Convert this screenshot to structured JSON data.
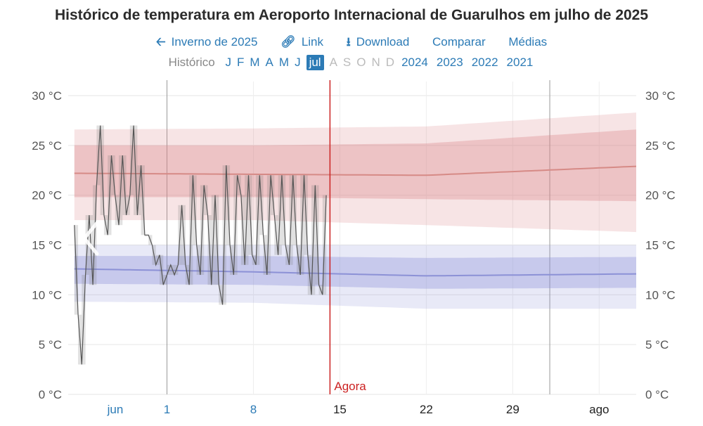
{
  "title": "Histórico de temperatura em Aeroporto Internacional de Guarulhos em julho de 2025",
  "nav": {
    "season": "Inverno de 2025",
    "link": "Link",
    "download": "Download",
    "compare": "Comparar",
    "averages": "Médias"
  },
  "months": {
    "label": "Histórico",
    "items": [
      {
        "l": "J",
        "state": "on"
      },
      {
        "l": "F",
        "state": "on"
      },
      {
        "l": "M",
        "state": "on"
      },
      {
        "l": "A",
        "state": "on"
      },
      {
        "l": "M",
        "state": "on"
      },
      {
        "l": "J",
        "state": "on"
      },
      {
        "l": "jul",
        "state": "sel"
      },
      {
        "l": "A",
        "state": "off"
      },
      {
        "l": "S",
        "state": "off"
      },
      {
        "l": "O",
        "state": "off"
      },
      {
        "l": "N",
        "state": "off"
      },
      {
        "l": "D",
        "state": "off"
      }
    ],
    "years": [
      "2024",
      "2023",
      "2022",
      "2021"
    ]
  },
  "icons": {
    "season": "arrow-left-icon",
    "link": "link-icon",
    "download": "download-icon",
    "prev": "chevron-left-icon"
  },
  "colors": {
    "accent": "#2c7bb6",
    "now": "#cc2222",
    "warm": "#d9868a",
    "cool": "#8a8fd8",
    "obs": "#555555"
  },
  "chart_data": {
    "type": "line",
    "y_ticks": [
      "0 °C",
      "5 °C",
      "10 °C",
      "15 °C",
      "20 °C",
      "25 °C",
      "30 °C"
    ],
    "ylim": [
      0,
      30
    ],
    "x_ticks": [
      {
        "day": -10,
        "label": "jun",
        "color": "#2c7bb6"
      },
      {
        "day": 1,
        "label": "1",
        "color": "#2c7bb6"
      },
      {
        "day": 8,
        "label": "8",
        "color": "#2c7bb6"
      },
      {
        "day": 15,
        "label": "15",
        "color": "#222"
      },
      {
        "day": 22,
        "label": "22",
        "color": "#222"
      },
      {
        "day": 29,
        "label": "29",
        "color": "#222"
      },
      {
        "day": 36,
        "label": "ago",
        "color": "#222"
      }
    ],
    "x_range": [
      -7,
      39
    ],
    "month_lines": [
      1,
      32
    ],
    "now": {
      "day": 14.2,
      "label": "Agora"
    },
    "high_band": {
      "x": [
        -6.5,
        8,
        22,
        39
      ],
      "p10": [
        17.5,
        17.5,
        17.0,
        16.3
      ],
      "p25": [
        19.8,
        19.8,
        19.6,
        19.4
      ],
      "mean": [
        22.2,
        22.1,
        22.0,
        22.9
      ],
      "p75": [
        25.0,
        25.0,
        25.2,
        26.6
      ],
      "p90": [
        26.6,
        26.7,
        26.9,
        28.3
      ]
    },
    "low_band": {
      "x": [
        -6.5,
        8,
        22,
        39
      ],
      "p10": [
        9.3,
        9.2,
        8.6,
        8.6
      ],
      "p25": [
        11.1,
        11.0,
        10.6,
        10.7
      ],
      "mean": [
        12.6,
        12.3,
        11.9,
        12.1
      ],
      "p75": [
        13.9,
        13.9,
        13.7,
        13.8
      ],
      "p90": [
        15.0,
        15.0,
        15.0,
        15.0
      ]
    },
    "observed": {
      "x": [
        -6.5,
        -6.2,
        -5.9,
        -5.6,
        -5.3,
        -5,
        -4.7,
        -4.4,
        -4.1,
        -3.8,
        -3.5,
        -3.2,
        -2.9,
        -2.6,
        -2.3,
        -2,
        -1.7,
        -1.4,
        -1.1,
        -0.8,
        -0.5,
        -0.2,
        0.1,
        0.4,
        0.7,
        1,
        1.3,
        1.6,
        1.9,
        2.2,
        2.5,
        2.8,
        3.1,
        3.4,
        3.7,
        4,
        4.3,
        4.6,
        4.9,
        5.2,
        5.5,
        5.8,
        6.1,
        6.4,
        6.7,
        7,
        7.3,
        7.6,
        7.9,
        8.2,
        8.5,
        8.8,
        9.1,
        9.4,
        9.7,
        10,
        10.3,
        10.6,
        10.9,
        11.2,
        11.5,
        11.8,
        12.1,
        12.4,
        12.7,
        13,
        13.3,
        13.6,
        13.9
      ],
      "y": [
        17,
        8,
        3,
        12,
        18,
        11,
        21,
        27,
        18,
        16,
        24,
        20,
        17,
        24,
        18,
        20,
        27,
        18,
        23,
        16,
        16,
        15,
        13,
        14,
        11,
        12,
        13,
        12,
        13,
        19,
        13,
        11,
        22,
        15,
        12,
        21,
        18,
        11,
        20,
        11,
        9,
        23,
        15,
        12,
        22,
        20,
        13,
        22,
        14,
        13,
        22,
        16,
        12,
        22,
        18,
        14,
        22,
        15,
        13,
        22,
        15,
        12,
        22,
        14,
        10,
        21,
        11,
        10,
        20
      ],
      "min_box": {
        "x0": -6.5,
        "x1": 14.2
      }
    }
  }
}
